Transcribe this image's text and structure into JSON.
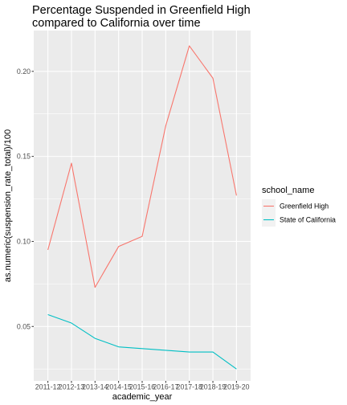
{
  "chart_data": {
    "type": "line",
    "title_lines": [
      "Percentage Suspended in Greenfield High",
      "compared to California over time"
    ],
    "xlabel": "academic_year",
    "ylabel": "as.numeric(suspension_rate_total)/100",
    "categories": [
      "2011-12",
      "2012-13",
      "2013-14",
      "2014-15",
      "2015-16",
      "2016-17",
      "2017-18",
      "2018-19",
      "2019-20"
    ],
    "ylim": [
      0.018,
      0.224
    ],
    "yticks": [
      0.05,
      0.1,
      0.15,
      0.2
    ],
    "ytick_labels": [
      "0.05",
      "0.10",
      "0.15",
      "0.20"
    ],
    "grid": true,
    "legend_title": "school_name",
    "legend_position": "right",
    "series": [
      {
        "name": "Greenfield High",
        "color": "#F8766D",
        "values": [
          0.095,
          0.146,
          0.073,
          0.097,
          0.103,
          0.168,
          0.215,
          0.196,
          0.127
        ]
      },
      {
        "name": "State of California",
        "color": "#00BFC4",
        "values": [
          0.057,
          0.052,
          0.043,
          0.038,
          0.037,
          0.036,
          0.035,
          0.035,
          0.025
        ]
      }
    ],
    "panel_background": "#EBEBEB",
    "grid_color": "#FFFFFF"
  }
}
